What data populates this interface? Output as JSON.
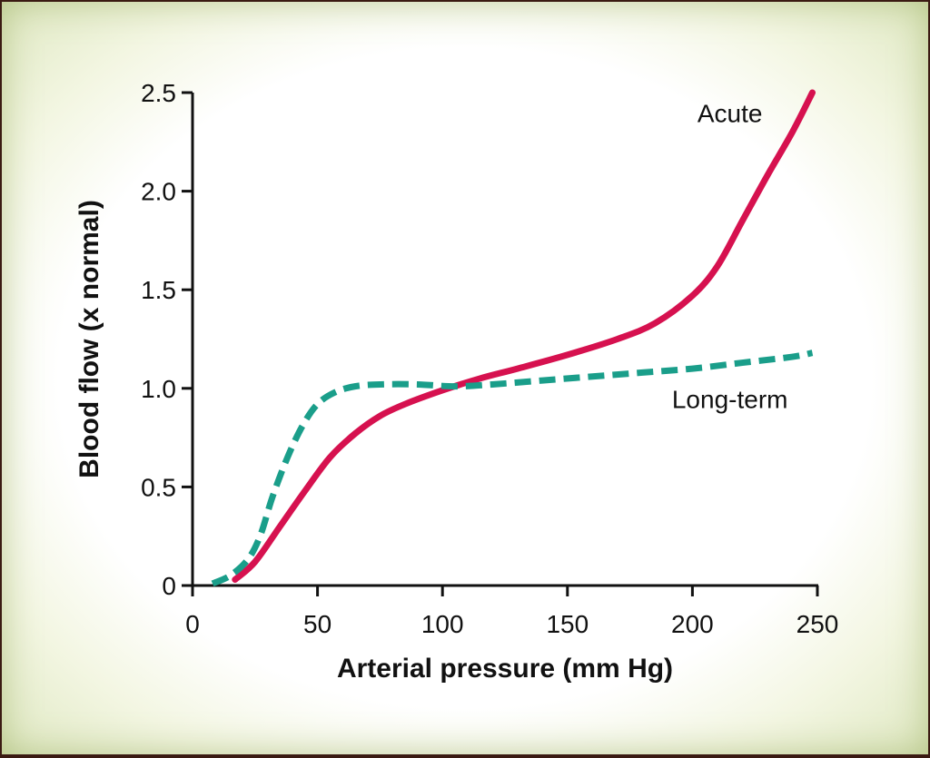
{
  "chart_data": {
    "type": "line",
    "xlabel": "Arterial pressure (mm Hg)",
    "ylabel": "Blood flow (x normal)",
    "xlim": [
      0,
      250
    ],
    "ylim": [
      0,
      2.5
    ],
    "x_ticks": [
      "0",
      "50",
      "100",
      "150",
      "200",
      "250"
    ],
    "y_ticks": [
      "0",
      "0.5",
      "1.0",
      "1.5",
      "2.0",
      "2.5"
    ],
    "grid": false,
    "series": [
      {
        "name": "Acute",
        "color": "#d6114f",
        "style": "solid",
        "x": [
          17,
          25,
          35,
          45,
          55,
          65,
          75,
          85,
          100,
          115,
          130,
          150,
          170,
          185,
          200,
          210,
          220,
          230,
          240,
          248
        ],
        "y": [
          0.03,
          0.12,
          0.3,
          0.48,
          0.65,
          0.77,
          0.86,
          0.92,
          0.99,
          1.05,
          1.1,
          1.17,
          1.25,
          1.33,
          1.47,
          1.62,
          1.85,
          2.08,
          2.3,
          2.5
        ]
      },
      {
        "name": "Long-term",
        "color": "#1a9e8a",
        "style": "dashed",
        "x": [
          8,
          15,
          22,
          27,
          32,
          38,
          44,
          50,
          57,
          65,
          75,
          90,
          105,
          120,
          140,
          160,
          180,
          200,
          220,
          240,
          248
        ],
        "y": [
          0.01,
          0.05,
          0.13,
          0.25,
          0.45,
          0.65,
          0.81,
          0.92,
          0.98,
          1.01,
          1.02,
          1.02,
          1.01,
          1.02,
          1.04,
          1.06,
          1.08,
          1.1,
          1.13,
          1.16,
          1.18
        ]
      }
    ],
    "annotations": [
      {
        "text": "Acute",
        "x": 215,
        "y": 2.35
      },
      {
        "text": "Long-term",
        "x": 215,
        "y": 0.9
      }
    ]
  }
}
